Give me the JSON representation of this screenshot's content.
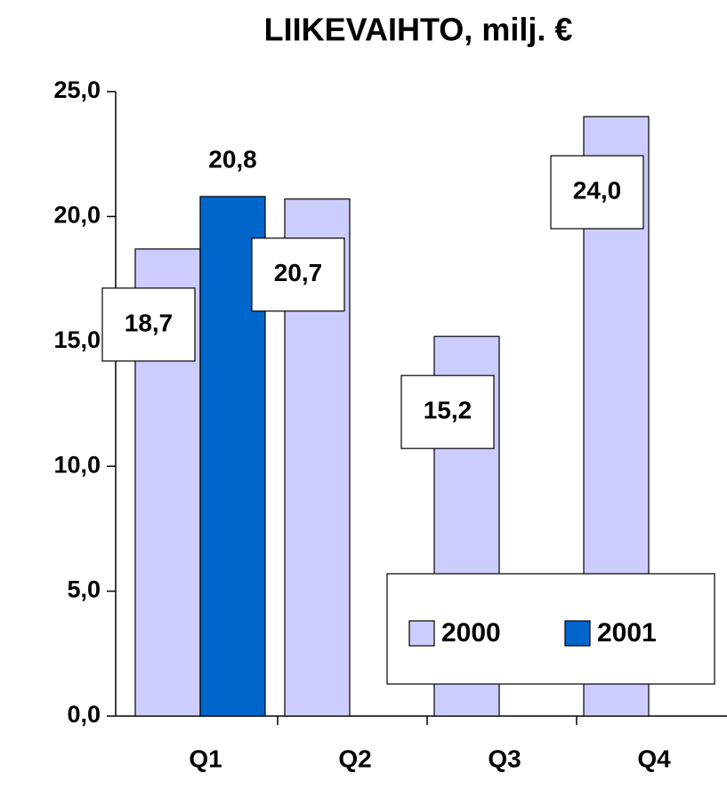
{
  "chart_data": {
    "type": "bar",
    "title": "LIIKEVAIHTO, milj. €",
    "categories": [
      "Q1",
      "Q2",
      "Q3",
      "Q4"
    ],
    "series": [
      {
        "name": "2000",
        "color": "#ccccff",
        "values": [
          18.7,
          20.7,
          15.2,
          24.0
        ],
        "value_labels": [
          "18,7",
          "20,7",
          "15,2",
          "24,0"
        ]
      },
      {
        "name": "2001",
        "color": "#0066cc",
        "values": [
          20.8,
          null,
          null,
          null
        ],
        "value_labels": [
          "20,8",
          null,
          null,
          null
        ]
      }
    ],
    "ylim": [
      0,
      25
    ],
    "yticks": [
      {
        "value": 0,
        "label": "0,0"
      },
      {
        "value": 5,
        "label": "5,0"
      },
      {
        "value": 10,
        "label": "10,0"
      },
      {
        "value": 15,
        "label": "15,0"
      },
      {
        "value": 20,
        "label": "20,0"
      },
      {
        "value": 25,
        "label": "25,0"
      }
    ],
    "legend": "lower right"
  }
}
